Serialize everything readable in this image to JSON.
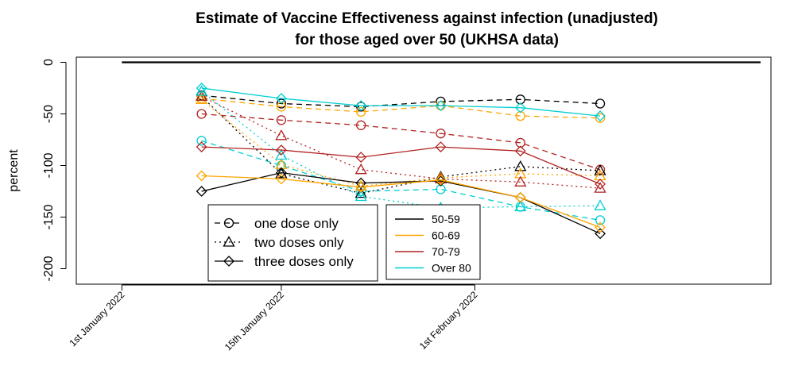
{
  "chart_data": {
    "type": "line",
    "title": [
      "Estimate of Vaccine Effectiveness against infection (unadjusted)",
      "for those aged over 50 (UKHSA data)"
    ],
    "xlabel": "",
    "ylabel": "percent",
    "ylim": [
      -215,
      5
    ],
    "xlim": [
      "2021-12-28",
      "2022-02-27"
    ],
    "x_ticks": [
      {
        "date": "2022-01-01",
        "label": "1st January 2022"
      },
      {
        "date": "2022-01-15",
        "label": "15th January 2022"
      },
      {
        "date": "2022-02-01",
        "label": "1st February 2022"
      }
    ],
    "y_ticks": [
      0,
      -50,
      -100,
      -150,
      -200
    ],
    "grid": false,
    "x": [
      "2022-01-08",
      "2022-01-15",
      "2022-01-22",
      "2022-01-29",
      "2022-02-05",
      "2022-02-12"
    ],
    "reference_line": {
      "value": 0,
      "color": "#000000"
    },
    "age_groups": [
      {
        "name": "50-59",
        "color": "#000000"
      },
      {
        "name": "60-69",
        "color": "#FFA500"
      },
      {
        "name": "70-79",
        "color": "#B22222"
      },
      {
        "name": "Over 80",
        "color": "#00CED1"
      }
    ],
    "dose_types": [
      {
        "name": "one dose only",
        "line": "dashed",
        "marker": "circle"
      },
      {
        "name": "two doses only",
        "line": "dotted",
        "marker": "triangle"
      },
      {
        "name": "three doses only",
        "line": "solid",
        "marker": "diamond"
      }
    ],
    "series": [
      {
        "age": "50-59",
        "dose": "one dose only",
        "values": [
          -32,
          -40,
          -43,
          -38,
          -36,
          -40
        ]
      },
      {
        "age": "60-69",
        "dose": "one dose only",
        "values": [
          -35,
          -43,
          -48,
          -42,
          -52,
          -54
        ]
      },
      {
        "age": "70-79",
        "dose": "one dose only",
        "values": [
          -50,
          -56,
          -61,
          -69,
          -78,
          -104
        ]
      },
      {
        "age": "Over 80",
        "dose": "one dose only",
        "values": [
          -76,
          -100,
          -125,
          -123,
          -140,
          -153
        ]
      },
      {
        "age": "50-59",
        "dose": "two doses only",
        "values": [
          -33,
          -108,
          -127,
          -111,
          -101,
          -105
        ]
      },
      {
        "age": "60-69",
        "dose": "two doses only",
        "values": [
          -36,
          -99,
          -120,
          -112,
          -108,
          -110
        ]
      },
      {
        "age": "70-79",
        "dose": "two doses only",
        "values": [
          -33,
          -71,
          -104,
          -113,
          -116,
          -122
        ]
      },
      {
        "age": "Over 80",
        "dose": "two doses only",
        "values": [
          -28,
          -90,
          -130,
          -141,
          -140,
          -139
        ]
      },
      {
        "age": "50-59",
        "dose": "three doses only",
        "values": [
          -125,
          -107,
          -117,
          -115,
          -131,
          -166
        ]
      },
      {
        "age": "60-69",
        "dose": "three doses only",
        "values": [
          -110,
          -113,
          -121,
          -114,
          -131,
          -160
        ]
      },
      {
        "age": "70-79",
        "dose": "three doses only",
        "values": [
          -82,
          -85,
          -92,
          -82,
          -86,
          -118
        ]
      },
      {
        "age": "Over 80",
        "dose": "three doses only",
        "values": [
          -25,
          -35,
          -42,
          -42,
          -44,
          -52
        ]
      }
    ]
  }
}
